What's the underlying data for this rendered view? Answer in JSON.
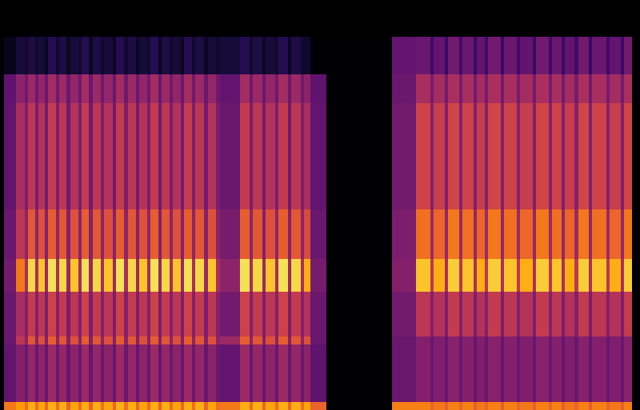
{
  "chart_data": {
    "type": "heatmap",
    "x": [
      0,
      0.5,
      2,
      3.1,
      3.5,
      4.4,
      4.8,
      5.6,
      6,
      7,
      7.4,
      8.3,
      8.8,
      9.8,
      10.2,
      11.1,
      11.6,
      12.6,
      13,
      14.1,
      14.5,
      15.5,
      16,
      17,
      17.4,
      18.4,
      18.8,
      19.8,
      20.2,
      21.2,
      21.6,
      22.6,
      23,
      24,
      24.4,
      25.5,
      26,
      27,
      27.5,
      30,
      31.2,
      31.6,
      32.8,
      33.2,
      34.4,
      34.8,
      36,
      36.4,
      37.6,
      38,
      38.8,
      40.8,
      49,
      52,
      53.8,
      54.2,
      55.6,
      56,
      57.4,
      57.8,
      59.2,
      59.6,
      60.6,
      61,
      62.6,
      63,
      64.6,
      65,
      66.6,
      67,
      68.6,
      69,
      70.2,
      70.6,
      71.8,
      72.3,
      73.6,
      74,
      75.8,
      76.2,
      77.6,
      78,
      79,
      80
    ],
    "y": [
      0,
      2,
      16,
      18,
      29,
      37,
      49,
      75,
      82,
      91
    ],
    "cells": [
      [
        0,
        0,
        0,
        0,
        0,
        0,
        0,
        0,
        0
      ],
      [
        0.7,
        0.28,
        0.3,
        0.3,
        0.32,
        0.3,
        0.28,
        0.27,
        0.05
      ],
      [
        0.78,
        0.36,
        0.5,
        0.45,
        0.7,
        0.5,
        0.45,
        0.38,
        0.1
      ],
      [
        0.68,
        0.3,
        0.38,
        0.36,
        0.45,
        0.38,
        0.34,
        0.31,
        0.08
      ],
      [
        0.82,
        0.4,
        0.62,
        0.52,
        0.9,
        0.62,
        0.5,
        0.42,
        0.12
      ],
      [
        0.68,
        0.3,
        0.38,
        0.36,
        0.45,
        0.38,
        0.34,
        0.31,
        0.08
      ],
      [
        0.8,
        0.38,
        0.6,
        0.5,
        0.86,
        0.6,
        0.48,
        0.4,
        0.1
      ],
      [
        0.66,
        0.29,
        0.36,
        0.34,
        0.42,
        0.36,
        0.32,
        0.3,
        0.06
      ],
      [
        0.82,
        0.42,
        0.64,
        0.55,
        0.92,
        0.64,
        0.52,
        0.44,
        0.14
      ],
      [
        0.68,
        0.3,
        0.38,
        0.36,
        0.45,
        0.38,
        0.34,
        0.31,
        0.08
      ],
      [
        0.82,
        0.4,
        0.62,
        0.52,
        0.9,
        0.62,
        0.5,
        0.42,
        0.12
      ],
      [
        0.66,
        0.29,
        0.36,
        0.34,
        0.42,
        0.36,
        0.32,
        0.3,
        0.06
      ],
      [
        0.8,
        0.38,
        0.6,
        0.5,
        0.86,
        0.6,
        0.48,
        0.4,
        0.1
      ],
      [
        0.68,
        0.3,
        0.38,
        0.36,
        0.45,
        0.38,
        0.34,
        0.31,
        0.08
      ],
      [
        0.82,
        0.42,
        0.64,
        0.55,
        0.92,
        0.64,
        0.52,
        0.44,
        0.14
      ],
      [
        0.66,
        0.29,
        0.36,
        0.34,
        0.42,
        0.36,
        0.32,
        0.3,
        0.06
      ],
      [
        0.82,
        0.4,
        0.62,
        0.52,
        0.9,
        0.62,
        0.5,
        0.42,
        0.12
      ],
      [
        0.68,
        0.3,
        0.38,
        0.36,
        0.45,
        0.38,
        0.34,
        0.31,
        0.08
      ],
      [
        0.8,
        0.38,
        0.6,
        0.5,
        0.86,
        0.6,
        0.48,
        0.4,
        0.1
      ],
      [
        0.66,
        0.29,
        0.36,
        0.34,
        0.42,
        0.36,
        0.32,
        0.3,
        0.06
      ],
      [
        0.82,
        0.42,
        0.64,
        0.55,
        0.92,
        0.64,
        0.52,
        0.44,
        0.14
      ],
      [
        0.68,
        0.3,
        0.38,
        0.36,
        0.45,
        0.38,
        0.34,
        0.31,
        0.08
      ],
      [
        0.82,
        0.4,
        0.62,
        0.52,
        0.9,
        0.62,
        0.5,
        0.42,
        0.12
      ],
      [
        0.66,
        0.29,
        0.36,
        0.34,
        0.42,
        0.36,
        0.32,
        0.3,
        0.06
      ],
      [
        0.8,
        0.38,
        0.6,
        0.5,
        0.86,
        0.6,
        0.48,
        0.4,
        0.1
      ],
      [
        0.68,
        0.3,
        0.38,
        0.36,
        0.45,
        0.38,
        0.34,
        0.31,
        0.08
      ],
      [
        0.82,
        0.42,
        0.64,
        0.55,
        0.92,
        0.64,
        0.52,
        0.44,
        0.14
      ],
      [
        0.66,
        0.29,
        0.36,
        0.34,
        0.42,
        0.36,
        0.32,
        0.3,
        0.06
      ],
      [
        0.82,
        0.4,
        0.62,
        0.52,
        0.9,
        0.62,
        0.5,
        0.42,
        0.12
      ],
      [
        0.68,
        0.3,
        0.38,
        0.36,
        0.45,
        0.38,
        0.34,
        0.31,
        0.08
      ],
      [
        0.8,
        0.38,
        0.6,
        0.5,
        0.86,
        0.6,
        0.48,
        0.4,
        0.1
      ],
      [
        0.66,
        0.29,
        0.36,
        0.34,
        0.42,
        0.36,
        0.32,
        0.3,
        0.06
      ],
      [
        0.82,
        0.42,
        0.64,
        0.55,
        0.92,
        0.64,
        0.52,
        0.44,
        0.14
      ],
      [
        0.68,
        0.3,
        0.38,
        0.36,
        0.45,
        0.38,
        0.34,
        0.31,
        0.08
      ],
      [
        0.82,
        0.4,
        0.62,
        0.52,
        0.9,
        0.62,
        0.5,
        0.42,
        0.12
      ],
      [
        0.66,
        0.29,
        0.36,
        0.34,
        0.42,
        0.36,
        0.32,
        0.3,
        0.06
      ],
      [
        0.8,
        0.38,
        0.6,
        0.5,
        0.86,
        0.6,
        0.48,
        0.4,
        0.1
      ],
      [
        0.68,
        0.3,
        0.38,
        0.36,
        0.45,
        0.38,
        0.34,
        0.31,
        0.08
      ],
      [
        0.7,
        0.28,
        0.42,
        0.32,
        0.38,
        0.33,
        0.3,
        0.28,
        0.1
      ],
      [
        0.82,
        0.42,
        0.64,
        0.55,
        0.92,
        0.64,
        0.52,
        0.44,
        0.14
      ],
      [
        0.68,
        0.3,
        0.38,
        0.36,
        0.45,
        0.38,
        0.34,
        0.31,
        0.08
      ],
      [
        0.82,
        0.4,
        0.62,
        0.52,
        0.9,
        0.62,
        0.5,
        0.42,
        0.12
      ],
      [
        0.66,
        0.29,
        0.36,
        0.34,
        0.42,
        0.36,
        0.32,
        0.3,
        0.06
      ],
      [
        0.8,
        0.38,
        0.6,
        0.5,
        0.86,
        0.6,
        0.48,
        0.4,
        0.1
      ],
      [
        0.68,
        0.3,
        0.38,
        0.36,
        0.45,
        0.38,
        0.34,
        0.31,
        0.08
      ],
      [
        0.82,
        0.42,
        0.64,
        0.55,
        0.92,
        0.64,
        0.52,
        0.44,
        0.14
      ],
      [
        0.66,
        0.29,
        0.36,
        0.34,
        0.42,
        0.36,
        0.32,
        0.3,
        0.06
      ],
      [
        0.82,
        0.4,
        0.62,
        0.52,
        0.9,
        0.62,
        0.5,
        0.42,
        0.12
      ],
      [
        0.68,
        0.3,
        0.38,
        0.36,
        0.45,
        0.38,
        0.34,
        0.31,
        0.08
      ],
      [
        0.8,
        0.38,
        0.6,
        0.48,
        0.82,
        0.58,
        0.46,
        0.38,
        0.08
      ],
      [
        0.65,
        0.27,
        0.3,
        0.3,
        0.33,
        0.3,
        0.28,
        0.27,
        0
      ],
      [
        0,
        0,
        0,
        0,
        0,
        0,
        0,
        0,
        0
      ],
      [
        0.72,
        0.3,
        0.3,
        0.32,
        0.36,
        0.34,
        0.32,
        0.3,
        0.28
      ],
      [
        0.72,
        0.36,
        0.36,
        0.5,
        0.86,
        0.68,
        0.55,
        0.45,
        0.3
      ],
      [
        0.66,
        0.3,
        0.3,
        0.36,
        0.5,
        0.42,
        0.36,
        0.33,
        0.2
      ],
      [
        0.7,
        0.35,
        0.35,
        0.48,
        0.82,
        0.66,
        0.53,
        0.44,
        0.28
      ],
      [
        0.64,
        0.29,
        0.29,
        0.34,
        0.46,
        0.4,
        0.35,
        0.32,
        0.18
      ],
      [
        0.72,
        0.37,
        0.37,
        0.52,
        0.88,
        0.7,
        0.56,
        0.46,
        0.32
      ],
      [
        0.66,
        0.3,
        0.3,
        0.36,
        0.5,
        0.42,
        0.36,
        0.33,
        0.2
      ],
      [
        0.72,
        0.36,
        0.36,
        0.5,
        0.86,
        0.68,
        0.55,
        0.45,
        0.3
      ],
      [
        0.64,
        0.29,
        0.29,
        0.34,
        0.46,
        0.4,
        0.35,
        0.32,
        0.18
      ],
      [
        0.7,
        0.35,
        0.35,
        0.48,
        0.82,
        0.66,
        0.53,
        0.44,
        0.28
      ],
      [
        0.66,
        0.3,
        0.3,
        0.36,
        0.5,
        0.42,
        0.36,
        0.33,
        0.2
      ],
      [
        0.72,
        0.37,
        0.37,
        0.52,
        0.88,
        0.7,
        0.56,
        0.46,
        0.32
      ],
      [
        0.64,
        0.29,
        0.29,
        0.34,
        0.46,
        0.4,
        0.35,
        0.32,
        0.18
      ],
      [
        0.72,
        0.36,
        0.36,
        0.5,
        0.86,
        0.68,
        0.55,
        0.45,
        0.3
      ],
      [
        0.66,
        0.3,
        0.3,
        0.36,
        0.5,
        0.42,
        0.36,
        0.33,
        0.2
      ],
      [
        0.7,
        0.35,
        0.35,
        0.48,
        0.82,
        0.66,
        0.53,
        0.44,
        0.28
      ],
      [
        0.64,
        0.29,
        0.29,
        0.34,
        0.46,
        0.4,
        0.35,
        0.32,
        0.18
      ],
      [
        0.72,
        0.37,
        0.37,
        0.52,
        0.88,
        0.7,
        0.56,
        0.46,
        0.32
      ],
      [
        0.66,
        0.3,
        0.3,
        0.36,
        0.5,
        0.42,
        0.36,
        0.33,
        0.2
      ],
      [
        0.72,
        0.36,
        0.36,
        0.5,
        0.86,
        0.68,
        0.55,
        0.45,
        0.3
      ],
      [
        0.64,
        0.29,
        0.29,
        0.34,
        0.46,
        0.4,
        0.35,
        0.32,
        0.18
      ],
      [
        0.7,
        0.35,
        0.35,
        0.48,
        0.82,
        0.66,
        0.53,
        0.44,
        0.28
      ],
      [
        0.66,
        0.3,
        0.3,
        0.36,
        0.5,
        0.42,
        0.36,
        0.33,
        0.2
      ],
      [
        0.72,
        0.37,
        0.37,
        0.52,
        0.88,
        0.7,
        0.56,
        0.46,
        0.32
      ],
      [
        0.64,
        0.29,
        0.29,
        0.34,
        0.46,
        0.4,
        0.35,
        0.32,
        0.18
      ],
      [
        0.72,
        0.36,
        0.36,
        0.5,
        0.86,
        0.68,
        0.55,
        0.45,
        0.3
      ],
      [
        0.66,
        0.3,
        0.3,
        0.36,
        0.5,
        0.42,
        0.36,
        0.33,
        0.2
      ],
      [
        0.7,
        0.35,
        0.35,
        0.48,
        0.82,
        0.66,
        0.53,
        0.44,
        0.28
      ],
      [
        0.64,
        0.29,
        0.29,
        0.34,
        0.46,
        0.4,
        0.35,
        0.32,
        0.18
      ],
      [
        0.72,
        0.37,
        0.37,
        0.52,
        0.88,
        0.7,
        0.56,
        0.46,
        0.32
      ],
      [
        0,
        0,
        0,
        0,
        0,
        0,
        0,
        0,
        0
      ]
    ],
    "xlim": [
      0,
      80
    ],
    "ylim": [
      0,
      100
    ],
    "zlim": [
      0,
      1
    ],
    "tick_labels": false
  }
}
